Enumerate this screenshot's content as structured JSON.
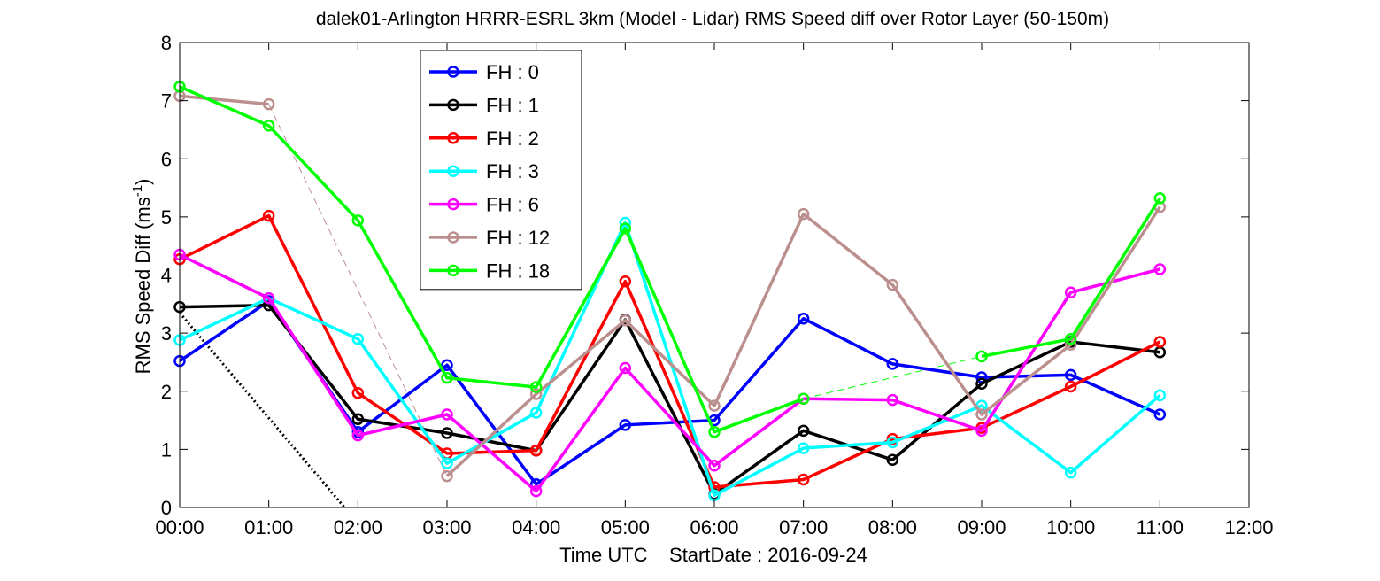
{
  "chart_data": {
    "type": "line",
    "title": "dalek01-Arlington HRRR-ESRL 3km (Model - Lidar) RMS Speed diff over Rotor Layer (50-150m)",
    "xlabel": "Time UTC    StartDate : 2016-09-24",
    "ylabel_main": "RMS Speed Diff (ms",
    "ylabel_sup": "-1",
    "ylabel_end": ")",
    "xlim": [
      0,
      12
    ],
    "ylim": [
      0,
      8
    ],
    "x_ticks": [
      0,
      1,
      2,
      3,
      4,
      5,
      6,
      7,
      8,
      9,
      10,
      11,
      12
    ],
    "x_tick_labels": [
      "00:00",
      "01:00",
      "02:00",
      "03:00",
      "04:00",
      "05:00",
      "06:00",
      "07:00",
      "08:00",
      "09:00",
      "10:00",
      "11:00",
      "12:00"
    ],
    "y_ticks": [
      0,
      1,
      2,
      3,
      4,
      5,
      6,
      7,
      8
    ],
    "y_tick_labels": [
      "0",
      "1",
      "2",
      "3",
      "4",
      "5",
      "6",
      "7",
      "8"
    ],
    "grid": false,
    "legend_position": "top-left (inside, offset)",
    "x": [
      0,
      1,
      2,
      3,
      4,
      5,
      6,
      7,
      8,
      9,
      10,
      11
    ],
    "series": [
      {
        "name": "FH : 0",
        "color": "#0000ff",
        "values": [
          2.52,
          3.55,
          1.3,
          2.45,
          0.4,
          1.42,
          1.5,
          3.25,
          2.47,
          2.24,
          2.28,
          1.6
        ]
      },
      {
        "name": "FH : 1",
        "color": "#000000",
        "values": [
          3.45,
          3.48,
          1.52,
          1.28,
          0.98,
          3.23,
          0.23,
          1.32,
          0.82,
          2.13,
          2.85,
          2.67
        ]
      },
      {
        "name": "FH : 2",
        "color": "#ff0000",
        "values": [
          4.27,
          5.02,
          1.97,
          0.93,
          0.98,
          3.89,
          0.35,
          0.48,
          1.18,
          1.37,
          2.08,
          2.85
        ]
      },
      {
        "name": "FH : 3",
        "color": "#00ffff",
        "values": [
          2.88,
          3.6,
          2.9,
          0.76,
          1.63,
          4.9,
          0.21,
          1.02,
          1.12,
          1.75,
          0.6,
          1.93
        ]
      },
      {
        "name": "FH : 6",
        "color": "#ff00ff",
        "values": [
          4.35,
          3.6,
          1.24,
          1.6,
          0.28,
          2.4,
          0.72,
          1.87,
          1.85,
          1.32,
          3.7,
          4.1
        ]
      },
      {
        "name": "FH : 12",
        "color": "#bc8f8f",
        "values": [
          7.08,
          6.94,
          null,
          0.54,
          1.95,
          3.22,
          1.75,
          5.05,
          3.83,
          1.6,
          2.8,
          5.17
        ]
      },
      {
        "name": "FH : 18",
        "color": "#00ff00",
        "values": [
          7.24,
          6.57,
          4.94,
          2.23,
          2.07,
          4.8,
          1.3,
          1.87,
          null,
          2.6,
          2.9,
          5.32
        ]
      }
    ],
    "extra_lines": [
      {
        "style": "dotted",
        "color": "#000000",
        "points": [
          [
            0,
            3.35
          ],
          [
            1.85,
            0
          ]
        ]
      },
      {
        "style": "dashed-thin",
        "color": "#bc8f8f",
        "points": [
          [
            1,
            6.94
          ],
          [
            3,
            0.54
          ]
        ]
      },
      {
        "style": "dashed-thin",
        "color": "#00ff00",
        "points": [
          [
            7,
            1.87
          ],
          [
            9,
            2.6
          ]
        ]
      }
    ]
  }
}
